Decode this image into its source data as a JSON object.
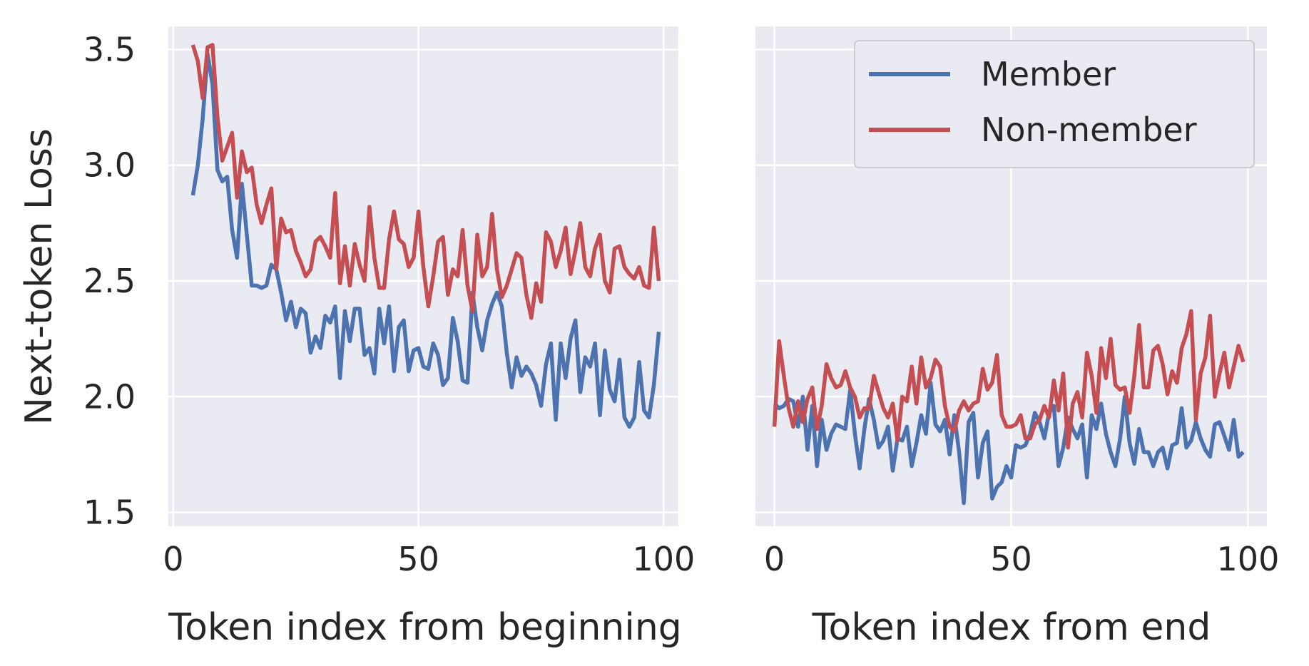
{
  "chart_data": [
    {
      "type": "line",
      "title": "",
      "xlabel": "Token index from beginning",
      "ylabel": "Next-token Loss",
      "xlim": [
        -1,
        103
      ],
      "ylim": [
        1.44,
        3.6
      ],
      "xticks": [
        "0",
        "50",
        "100"
      ],
      "xtick_values": [
        0,
        50,
        100
      ],
      "yticks": [
        "1.5",
        "2.0",
        "2.5",
        "3.0",
        "3.5"
      ],
      "ytick_values": [
        1.5,
        2.0,
        2.5,
        3.0,
        3.5
      ],
      "grid": true,
      "x": [
        4,
        5,
        6,
        7,
        8,
        9,
        10,
        11,
        12,
        13,
        14,
        15,
        16,
        17,
        18,
        19,
        20,
        21,
        22,
        23,
        24,
        25,
        26,
        27,
        28,
        29,
        30,
        31,
        32,
        33,
        34,
        35,
        36,
        37,
        38,
        39,
        40,
        41,
        42,
        43,
        44,
        45,
        46,
        47,
        48,
        49,
        50,
        51,
        52,
        53,
        54,
        55,
        56,
        57,
        58,
        59,
        60,
        61,
        62,
        63,
        64,
        65,
        66,
        67,
        68,
        69,
        70,
        71,
        72,
        73,
        74,
        75,
        76,
        77,
        78,
        79,
        80,
        81,
        82,
        83,
        84,
        85,
        86,
        87,
        88,
        89,
        90,
        91,
        92,
        93,
        94,
        95,
        96,
        97,
        98,
        99
      ],
      "series": [
        {
          "name": "Member",
          "color": "#4c72b0",
          "values": [
            2.87,
            3.0,
            3.2,
            3.48,
            3.35,
            2.98,
            2.93,
            2.95,
            2.72,
            2.6,
            2.92,
            2.7,
            2.48,
            2.48,
            2.47,
            2.48,
            2.57,
            2.55,
            2.45,
            2.33,
            2.41,
            2.3,
            2.38,
            2.36,
            2.19,
            2.26,
            2.21,
            2.35,
            2.32,
            2.39,
            2.08,
            2.37,
            2.24,
            2.38,
            2.38,
            2.18,
            2.21,
            2.1,
            2.38,
            2.23,
            2.39,
            2.11,
            2.3,
            2.33,
            2.11,
            2.2,
            2.21,
            2.13,
            2.12,
            2.23,
            2.18,
            2.05,
            2.08,
            2.34,
            2.24,
            2.07,
            2.06,
            2.45,
            2.3,
            2.2,
            2.33,
            2.4,
            2.45,
            2.39,
            2.19,
            2.04,
            2.17,
            2.09,
            2.13,
            2.1,
            2.05,
            1.96,
            2.14,
            2.23,
            1.9,
            2.23,
            2.08,
            2.25,
            2.33,
            2.02,
            2.17,
            2.13,
            2.23,
            1.92,
            2.2,
            2.03,
            1.98,
            2.16,
            1.91,
            1.87,
            1.91,
            2.15,
            1.94,
            1.91,
            2.05,
            2.28
          ]
        },
        {
          "name": "Non-member",
          "color": "#c44e52",
          "values": [
            3.52,
            3.45,
            3.29,
            3.51,
            3.52,
            3.21,
            3.02,
            3.08,
            3.14,
            2.86,
            3.06,
            2.97,
            2.99,
            2.83,
            2.75,
            2.83,
            2.9,
            2.55,
            2.77,
            2.71,
            2.72,
            2.63,
            2.58,
            2.52,
            2.55,
            2.67,
            2.69,
            2.65,
            2.6,
            2.88,
            2.49,
            2.65,
            2.48,
            2.66,
            2.57,
            2.5,
            2.82,
            2.6,
            2.47,
            2.47,
            2.68,
            2.8,
            2.68,
            2.66,
            2.56,
            2.6,
            2.8,
            2.56,
            2.39,
            2.52,
            2.67,
            2.69,
            2.44,
            2.55,
            2.52,
            2.72,
            2.48,
            2.37,
            2.7,
            2.52,
            2.56,
            2.79,
            2.55,
            2.43,
            2.48,
            2.55,
            2.62,
            2.6,
            2.44,
            2.34,
            2.49,
            2.41,
            2.71,
            2.67,
            2.56,
            2.63,
            2.73,
            2.53,
            2.63,
            2.75,
            2.56,
            2.52,
            2.64,
            2.7,
            2.5,
            2.45,
            2.64,
            2.65,
            2.56,
            2.53,
            2.51,
            2.56,
            2.48,
            2.47,
            2.73,
            2.5
          ]
        }
      ]
    },
    {
      "type": "line",
      "title": "",
      "xlabel": "Token index from end",
      "ylabel": "",
      "xlim": [
        -4,
        104
      ],
      "ylim": [
        1.44,
        3.6
      ],
      "xticks": [
        "0",
        "50",
        "100"
      ],
      "xtick_values": [
        0,
        50,
        100
      ],
      "yticks": [],
      "ytick_values": [
        1.5,
        2.0,
        2.5,
        3.0,
        3.5
      ],
      "grid": true,
      "legend_position": "top-right",
      "x": [
        0,
        1,
        2,
        3,
        4,
        5,
        6,
        7,
        8,
        9,
        10,
        11,
        12,
        13,
        14,
        15,
        16,
        17,
        18,
        19,
        20,
        21,
        22,
        23,
        24,
        25,
        26,
        27,
        28,
        29,
        30,
        31,
        32,
        33,
        34,
        35,
        36,
        37,
        38,
        39,
        40,
        41,
        42,
        43,
        44,
        45,
        46,
        47,
        48,
        49,
        50,
        51,
        52,
        53,
        54,
        55,
        56,
        57,
        58,
        59,
        60,
        61,
        62,
        63,
        64,
        65,
        66,
        67,
        68,
        69,
        70,
        71,
        72,
        73,
        74,
        75,
        76,
        77,
        78,
        79,
        80,
        81,
        82,
        83,
        84,
        85,
        86,
        87,
        88,
        89,
        90,
        91,
        92,
        93,
        94,
        95,
        96,
        97,
        98,
        99
      ],
      "series": [
        {
          "name": "Member",
          "color": "#4c72b0",
          "values": [
            1.97,
            1.95,
            1.96,
            1.99,
            1.98,
            1.87,
            2.0,
            1.77,
            1.96,
            1.7,
            1.9,
            1.77,
            1.84,
            1.88,
            1.87,
            1.86,
            2.03,
            1.84,
            1.69,
            1.86,
            1.99,
            1.9,
            1.78,
            1.81,
            1.87,
            1.68,
            1.82,
            1.81,
            1.87,
            1.7,
            1.8,
            1.92,
            1.84,
            2.06,
            1.88,
            1.85,
            1.9,
            1.75,
            1.92,
            1.76,
            1.54,
            1.89,
            1.93,
            1.65,
            1.8,
            1.85,
            1.56,
            1.61,
            1.63,
            1.7,
            1.65,
            1.79,
            1.78,
            1.79,
            1.84,
            1.93,
            1.89,
            1.82,
            1.93,
            1.96,
            1.7,
            1.78,
            1.91,
            1.86,
            1.82,
            1.88,
            1.65,
            1.92,
            1.86,
            1.97,
            1.84,
            1.76,
            1.7,
            1.82,
            2.0,
            1.8,
            1.71,
            1.86,
            1.76,
            1.76,
            1.7,
            1.76,
            1.78,
            1.69,
            1.79,
            1.8,
            1.95,
            1.78,
            1.81,
            1.89,
            1.82,
            1.77,
            1.74,
            1.88,
            1.89,
            1.83,
            1.77,
            1.9,
            1.74,
            1.76
          ]
        },
        {
          "name": "Non-member",
          "color": "#c44e52",
          "values": [
            1.87,
            2.24,
            2.09,
            1.95,
            1.87,
            1.98,
            1.89,
            1.99,
            2.04,
            1.86,
            1.96,
            2.14,
            2.08,
            2.04,
            2.05,
            2.11,
            2.04,
            2.0,
            1.91,
            1.95,
            1.95,
            2.09,
            2.02,
            1.95,
            1.91,
            1.97,
            1.81,
            2.0,
            1.98,
            2.13,
            1.97,
            2.17,
            2.04,
            2.08,
            2.16,
            2.13,
            1.96,
            1.87,
            1.85,
            1.94,
            1.98,
            1.94,
            1.97,
            1.98,
            2.12,
            2.03,
            2.06,
            2.18,
            1.92,
            1.87,
            1.87,
            1.88,
            1.92,
            1.82,
            1.82,
            1.88,
            1.9,
            1.96,
            1.91,
            2.07,
            1.94,
            2.1,
            1.78,
            1.97,
            2.02,
            1.91,
            2.19,
            2.09,
            1.93,
            2.21,
            2.08,
            2.25,
            2.05,
            2.03,
            2.04,
            1.93,
            2.09,
            2.31,
            2.04,
            2.04,
            2.2,
            2.22,
            2.14,
            2.01,
            2.11,
            2.06,
            2.21,
            2.27,
            2.37,
            1.9,
            2.1,
            2.17,
            2.35,
            2.0,
            2.1,
            2.19,
            2.04,
            2.13,
            2.22,
            2.15
          ]
        }
      ]
    }
  ]
}
